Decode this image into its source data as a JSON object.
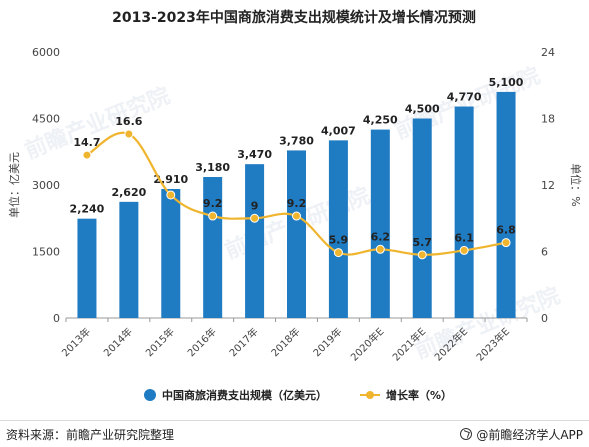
{
  "chart_data": {
    "type": "bar",
    "title": "2013-2023年中国商旅消费支出规模统计及增长情况预测",
    "categories": [
      "2013年",
      "2014年",
      "2015年",
      "2016年",
      "2017年",
      "2018年",
      "2019年",
      "2020年E",
      "2021年E",
      "2022年E",
      "2023年E"
    ],
    "series": [
      {
        "name": "中国商旅消费支出规模（亿美元）",
        "type": "bar",
        "axis": "left",
        "color": "#1f7bc2",
        "values": [
          2240,
          2620,
          2910,
          3180,
          3470,
          3780,
          4007,
          4250,
          4500,
          4770,
          5100
        ],
        "labels": [
          "2,240",
          "2,620",
          "2,910",
          "3,180",
          "3,470",
          "3,780",
          "4,007",
          "4,250",
          "4,500",
          "4,770",
          "5,100"
        ]
      },
      {
        "name": "增长率（%）",
        "type": "line",
        "axis": "right",
        "color": "#f0b52e",
        "values": [
          14.7,
          16.6,
          11.1,
          9.2,
          9.0,
          9.2,
          5.9,
          6.2,
          5.7,
          6.1,
          6.8
        ],
        "labels": [
          "14.7",
          "16.6",
          "",
          "9.2",
          "9",
          "9.2",
          "5.9",
          "6.2",
          "5.7",
          "6.1",
          "6.8"
        ]
      }
    ],
    "ylabel": "单位：亿美元",
    "y2label": "单位：%",
    "ylim": [
      0,
      6000
    ],
    "y2lim": [
      0,
      24
    ],
    "yticks": [
      "0",
      "1500",
      "3000",
      "4500",
      "6000"
    ],
    "y2ticks": [
      "0",
      "6",
      "12",
      "18",
      "24"
    ],
    "grid": false,
    "legend": "bottom"
  },
  "footer": {
    "source": "资料来源：前瞻产业研究院整理",
    "brand": "@前瞻经济学人APP"
  },
  "watermark": "前瞻产业研究院"
}
